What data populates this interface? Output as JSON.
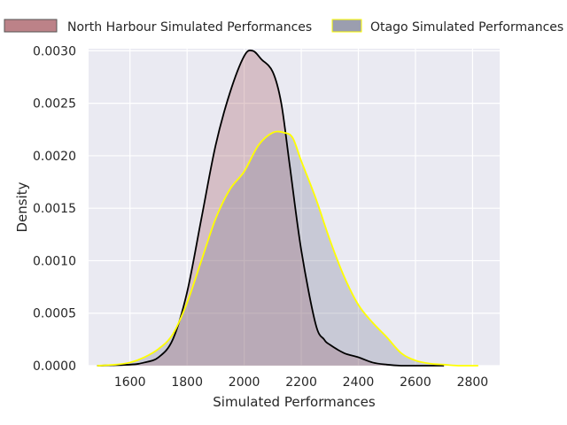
{
  "chart_data": {
    "type": "area",
    "title": "",
    "xlabel": "Simulated Performances",
    "ylabel": "Density",
    "xlim": [
      1455,
      2895
    ],
    "ylim": [
      0,
      0.00302
    ],
    "x_ticks": [
      1600,
      1800,
      2000,
      2200,
      2400,
      2600,
      2800
    ],
    "x_tick_labels": [
      "1600",
      "1800",
      "2000",
      "2200",
      "2400",
      "2600",
      "2800"
    ],
    "y_ticks": [
      0,
      0.0005,
      0.001,
      0.0015,
      0.002,
      0.0025,
      0.003
    ],
    "y_tick_labels": [
      "0.0000",
      "0.0005",
      "0.0010",
      "0.0015",
      "0.0020",
      "0.0025",
      "0.0030"
    ],
    "grid": true,
    "legend_position": "top",
    "colors": {
      "background": "#eaeaf2",
      "north_harbour_fill": "#a65860",
      "north_harbour_line": "#000000",
      "otago_fill": "#7a7e94",
      "otago_line": "#ffff00"
    },
    "series": [
      {
        "name": "North Harbour Simulated Performances",
        "x": [
          1485,
          1600,
          1650,
          1700,
          1750,
          1800,
          1850,
          1900,
          1950,
          2000,
          2030,
          2060,
          2100,
          2130,
          2160,
          2200,
          2250,
          2280,
          2300,
          2350,
          2400,
          2450,
          2500,
          2550,
          2600,
          2700
        ],
        "y": [
          0,
          1e-05,
          3e-05,
          8e-05,
          0.00025,
          0.0007,
          0.0014,
          0.0021,
          0.0026,
          0.00295,
          0.003,
          0.00292,
          0.0028,
          0.0025,
          0.0019,
          0.0011,
          0.0004,
          0.00025,
          0.0002,
          0.00012,
          8e-05,
          3e-05,
          1e-05,
          0,
          0,
          0
        ]
      },
      {
        "name": "Otago Simulated Performances",
        "x": [
          1485,
          1550,
          1600,
          1650,
          1700,
          1750,
          1800,
          1850,
          1900,
          1950,
          2000,
          2050,
          2100,
          2140,
          2170,
          2200,
          2250,
          2300,
          2350,
          2400,
          2450,
          2500,
          2550,
          2600,
          2650,
          2700,
          2750,
          2820
        ],
        "y": [
          0,
          1e-05,
          3e-05,
          8e-05,
          0.00016,
          0.0003,
          0.0006,
          0.001,
          0.0014,
          0.00168,
          0.00185,
          0.0021,
          0.00222,
          0.00222,
          0.00217,
          0.00195,
          0.0016,
          0.0012,
          0.00085,
          0.00058,
          0.00041,
          0.00027,
          0.00012,
          5e-05,
          2e-05,
          1e-05,
          0,
          0
        ]
      }
    ]
  }
}
